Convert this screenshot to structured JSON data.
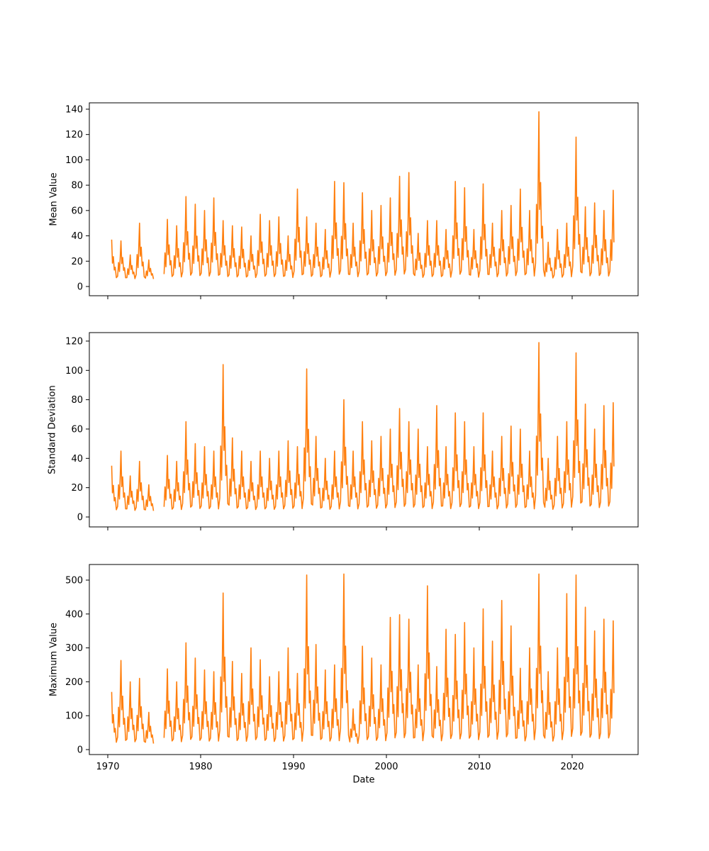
{
  "figure": {
    "background": "#ffffff",
    "line_color": "#ff7f0e",
    "axis_color": "#000000",
    "xlabel": "Date",
    "x_ticks": [
      1970,
      1980,
      1990,
      2000,
      2010,
      2020
    ],
    "xlim": [
      1968.0,
      2027.1
    ],
    "x_min": 1970.4,
    "x_max": 2024.55,
    "gap_after_year": 1974,
    "season_shape": {
      "offsets": [
        0.06,
        0.16,
        0.26,
        0.34,
        0.42,
        0.5,
        0.6,
        0.7,
        0.8,
        0.92
      ],
      "multipliers": [
        0.1,
        0.45,
        0.22,
        0.6,
        1.0,
        0.42,
        0.58,
        0.25,
        0.32,
        0.06
      ]
    },
    "years": [
      1970,
      1971,
      1972,
      1973,
      1974,
      1976,
      1977,
      1978,
      1979,
      1980,
      1981,
      1982,
      1983,
      1984,
      1985,
      1986,
      1987,
      1988,
      1989,
      1990,
      1991,
      1992,
      1993,
      1994,
      1995,
      1996,
      1997,
      1998,
      1999,
      2000,
      2001,
      2002,
      2003,
      2004,
      2005,
      2006,
      2007,
      2008,
      2009,
      2010,
      2011,
      2012,
      2013,
      2014,
      2015,
      2016,
      2017,
      2018,
      2019,
      2020,
      2021,
      2022,
      2023,
      2024
    ]
  },
  "chart_data": [
    {
      "type": "line",
      "title": "",
      "xlabel": "",
      "ylabel": "Mean Value",
      "legend": false,
      "grid": false,
      "color": "#ff7f0e",
      "y_ticks": [
        0,
        20,
        40,
        60,
        80,
        100,
        120,
        140
      ],
      "ylim": [
        -7,
        145
      ],
      "x_units": "year",
      "baseline": 5,
      "annual_peaks": [
        37,
        36,
        25,
        50,
        21,
        53,
        48,
        71,
        65,
        60,
        70,
        52,
        48,
        47,
        40,
        57,
        52,
        55,
        40,
        77,
        55,
        50,
        45,
        83,
        82,
        50,
        74,
        60,
        64,
        70,
        87,
        90,
        42,
        52,
        52,
        45,
        83,
        78,
        45,
        81,
        50,
        60,
        64,
        77,
        60,
        138,
        35,
        45,
        50,
        118,
        63,
        66,
        60,
        76
      ],
      "notable_points": [
        {
          "year": 2016,
          "value": 138
        },
        {
          "year": 2020,
          "value": 118
        },
        {
          "year": 2002,
          "value": 90
        },
        {
          "year": 2001,
          "value": 87
        }
      ]
    },
    {
      "type": "line",
      "title": "",
      "xlabel": "",
      "ylabel": "Standard Deviation",
      "legend": false,
      "grid": false,
      "color": "#ff7f0e",
      "y_ticks": [
        0,
        20,
        40,
        60,
        80,
        100,
        120
      ],
      "ylim": [
        -6,
        126
      ],
      "x_units": "year",
      "baseline": 3,
      "annual_peaks": [
        35,
        45,
        28,
        38,
        22,
        42,
        38,
        65,
        50,
        48,
        45,
        104,
        54,
        45,
        38,
        45,
        40,
        45,
        52,
        48,
        101,
        55,
        40,
        45,
        80,
        45,
        65,
        52,
        55,
        60,
        74,
        65,
        60,
        48,
        76,
        48,
        71,
        65,
        48,
        71,
        45,
        55,
        62,
        60,
        45,
        119,
        40,
        55,
        65,
        112,
        77,
        60,
        76,
        78
      ],
      "notable_points": [
        {
          "year": 2016,
          "value": 119
        },
        {
          "year": 2020,
          "value": 112
        },
        {
          "year": 1982,
          "value": 104
        },
        {
          "year": 1991,
          "value": 101
        }
      ]
    },
    {
      "type": "line",
      "title": "",
      "xlabel": "Date",
      "ylabel": "Maximum Value",
      "legend": false,
      "grid": false,
      "color": "#ff7f0e",
      "y_ticks": [
        0,
        100,
        200,
        300,
        400,
        500
      ],
      "ylim": [
        -15,
        544
      ],
      "x_units": "year",
      "baseline": 12,
      "annual_peaks": [
        170,
        263,
        200,
        210,
        110,
        238,
        200,
        315,
        270,
        235,
        230,
        462,
        260,
        225,
        300,
        265,
        215,
        230,
        300,
        225,
        515,
        310,
        235,
        250,
        518,
        120,
        305,
        270,
        250,
        390,
        398,
        385,
        250,
        483,
        245,
        355,
        340,
        375,
        300,
        415,
        320,
        440,
        365,
        240,
        300,
        518,
        230,
        300,
        460,
        515,
        420,
        350,
        385,
        380
      ],
      "notable_points": [
        {
          "year": 1991,
          "value": 515
        },
        {
          "year": 1995,
          "value": 518
        },
        {
          "year": 2016,
          "value": 518
        },
        {
          "year": 2020,
          "value": 515
        },
        {
          "year": 1982,
          "value": 462
        }
      ]
    }
  ]
}
